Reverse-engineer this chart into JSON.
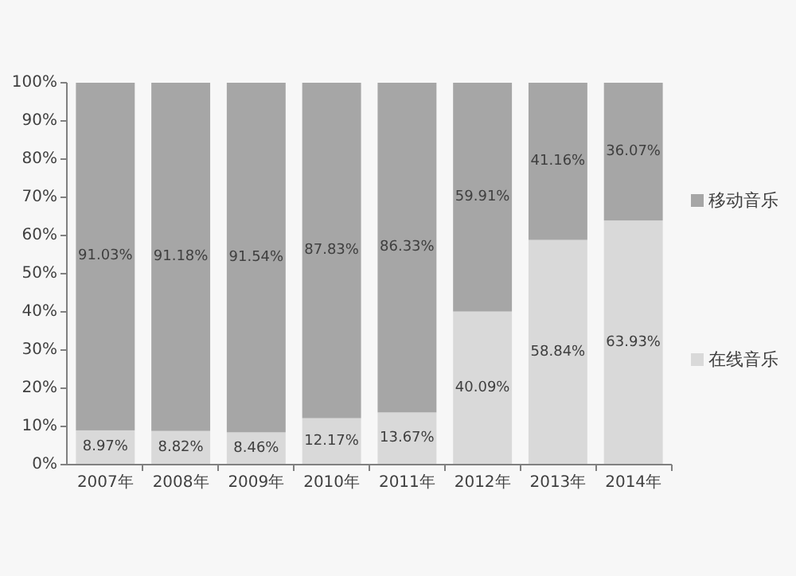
{
  "chart_data": {
    "type": "bar",
    "stacked": true,
    "categories": [
      "2007年",
      "2008年",
      "2009年",
      "2010年",
      "2011年",
      "2012年",
      "2013年",
      "2014年"
    ],
    "series": [
      {
        "name": "在线音乐",
        "color": "#d9d9d9",
        "values": [
          8.97,
          8.82,
          8.46,
          12.17,
          13.67,
          40.09,
          58.84,
          63.93
        ],
        "value_labels": [
          "8.97%",
          "8.82%",
          "8.46%",
          "12.17%",
          "13.67%",
          "40.09%",
          "58.84%",
          "63.93%"
        ]
      },
      {
        "name": "移动音乐",
        "color": "#a6a6a6",
        "values": [
          91.03,
          91.18,
          91.54,
          87.83,
          86.33,
          59.91,
          41.16,
          36.07
        ],
        "value_labels": [
          "91.03%",
          "91.18%",
          "91.54%",
          "87.83%",
          "86.33%",
          "59.91%",
          "41.16%",
          "36.07%"
        ]
      }
    ],
    "ylim": [
      0,
      100
    ],
    "yticks": [
      {
        "value": 0,
        "label": "0%"
      },
      {
        "value": 10,
        "label": "10%"
      },
      {
        "value": 20,
        "label": "20%"
      },
      {
        "value": 30,
        "label": "30%"
      },
      {
        "value": 40,
        "label": "40%"
      },
      {
        "value": 50,
        "label": "50%"
      },
      {
        "value": 60,
        "label": "60%"
      },
      {
        "value": 70,
        "label": "70%"
      },
      {
        "value": 80,
        "label": "80%"
      },
      {
        "value": 90,
        "label": "90%"
      },
      {
        "value": 100,
        "label": "100%"
      }
    ],
    "grid": false,
    "legend": "right"
  }
}
